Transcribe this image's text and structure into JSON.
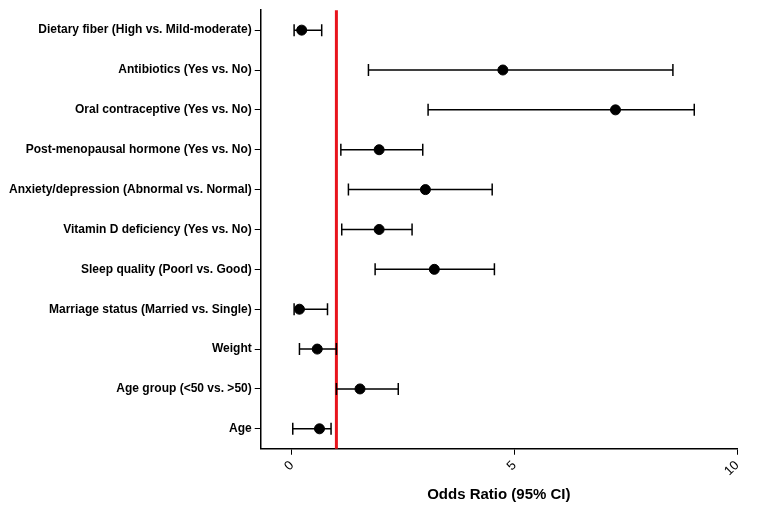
{
  "chart_data": {
    "type": "forest",
    "orientation": "horizontal",
    "categories": [
      "Dietary fiber (High vs. Mild-moderate)",
      "Antibiotics (Yes vs. No)",
      "Oral contraceptive (Yes vs. No)",
      "Post-menopausal hormone (Yes vs. No)",
      "Anxiety/depression (Abnormal vs. Normal)",
      "Vitamin D deficiency (Yes vs. No)",
      "Sleep quality (Poorl vs. Good)",
      "Marriage status (Married vs. Single)",
      "Weight",
      "Age group (<50 vs. >50)",
      "Age"
    ],
    "values": [
      0.22,
      4.74,
      7.27,
      1.96,
      3.0,
      1.96,
      3.2,
      0.17,
      0.57,
      1.53,
      0.62
    ],
    "ci_low": [
      0.05,
      1.72,
      3.06,
      1.1,
      1.27,
      1.12,
      1.87,
      0.05,
      0.17,
      1.0,
      0.02
    ],
    "ci_high": [
      0.67,
      8.56,
      9.04,
      2.94,
      4.5,
      2.7,
      4.55,
      0.8,
      1.0,
      2.39,
      0.88
    ],
    "color": "#000000",
    "marker": "circle",
    "x_label": "Odds Ratio (95% CI)",
    "xlim": [
      -0.7,
      10
    ],
    "xticks": [
      0,
      5,
      10
    ],
    "ref_line": {
      "value": 1,
      "color": "#e8141c"
    },
    "grid": false
  }
}
